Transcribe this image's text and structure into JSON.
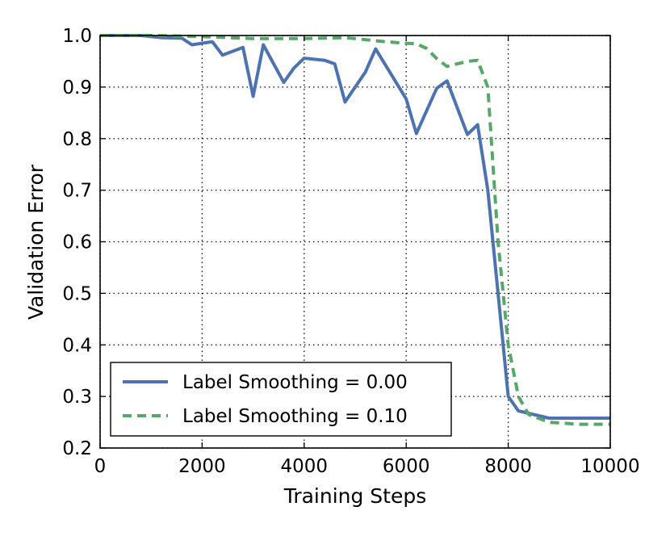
{
  "chart_data": {
    "type": "line",
    "xlabel": "Training Steps",
    "ylabel": "Validation Error",
    "xlim": [
      0,
      10000
    ],
    "ylim": [
      0.2,
      1.0
    ],
    "xticks": [
      0,
      2000,
      4000,
      6000,
      8000,
      10000
    ],
    "xtick_labels": [
      "0",
      "2000",
      "4000",
      "6000",
      "8000",
      "10000"
    ],
    "yticks": [
      0.2,
      0.3,
      0.4,
      0.5,
      0.6,
      0.7,
      0.8,
      0.9,
      1.0
    ],
    "ytick_labels": [
      "0.2",
      "0.3",
      "0.4",
      "0.5",
      "0.6",
      "0.7",
      "0.8",
      "0.9",
      "1.0"
    ],
    "grid": true,
    "legend_position": "bottom-left",
    "series": [
      {
        "name": "Label Smoothing = 0.00",
        "color": "#4c72b0",
        "style": "solid",
        "x": [
          0,
          400,
          800,
          1200,
          1600,
          1800,
          2200,
          2400,
          2800,
          3000,
          3200,
          3600,
          3800,
          4000,
          4400,
          4600,
          4800,
          5200,
          5400,
          6000,
          6200,
          6600,
          6800,
          7200,
          7400,
          7600,
          7800,
          8000,
          8200,
          8800,
          9400,
          10000
        ],
        "y": [
          1.0,
          1.0,
          1.0,
          0.996,
          0.995,
          0.982,
          0.988,
          0.962,
          0.977,
          0.882,
          0.982,
          0.909,
          0.937,
          0.956,
          0.952,
          0.945,
          0.871,
          0.929,
          0.974,
          0.877,
          0.81,
          0.898,
          0.912,
          0.808,
          0.827,
          0.7,
          0.5,
          0.3,
          0.272,
          0.258,
          0.258,
          0.258
        ]
      },
      {
        "name": "Label Smoothing = 0.10",
        "color": "#55a868",
        "style": "dashed",
        "x": [
          0,
          1000,
          2000,
          3000,
          4000,
          4800,
          5200,
          5600,
          6000,
          6200,
          6400,
          6600,
          6800,
          7200,
          7400,
          7600,
          7800,
          8000,
          8200,
          8400,
          8800,
          9400,
          10000
        ],
        "y": [
          1.0,
          1.0,
          0.998,
          0.994,
          0.994,
          0.996,
          0.992,
          0.988,
          0.985,
          0.984,
          0.975,
          0.955,
          0.94,
          0.95,
          0.952,
          0.9,
          0.6,
          0.4,
          0.3,
          0.265,
          0.25,
          0.246,
          0.246
        ]
      }
    ]
  }
}
